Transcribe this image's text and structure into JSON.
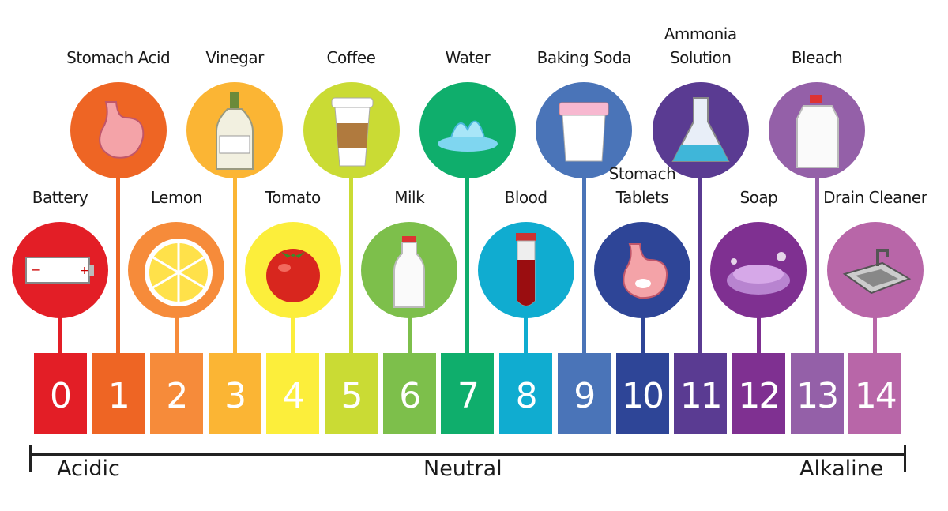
{
  "scale": {
    "levels": [
      {
        "ph": "0",
        "label": [
          "Battery"
        ],
        "color": "#e31e26",
        "icon": "battery-icon"
      },
      {
        "ph": "1",
        "label": [
          "Stomach Acid"
        ],
        "color": "#ee6524",
        "icon": "stomach-icon"
      },
      {
        "ph": "2",
        "label": [
          "Lemon"
        ],
        "color": "#f68b3a",
        "icon": "lemon-icon"
      },
      {
        "ph": "3",
        "label": [
          "Vinegar"
        ],
        "color": "#fbb534",
        "icon": "vinegar-bottle-icon"
      },
      {
        "ph": "4",
        "label": [
          "Tomato"
        ],
        "color": "#fcee3b",
        "icon": "tomato-icon"
      },
      {
        "ph": "5",
        "label": [
          "Coffee"
        ],
        "color": "#cadb34",
        "icon": "coffee-cup-icon"
      },
      {
        "ph": "6",
        "label": [
          "Milk"
        ],
        "color": "#7dbf4b",
        "icon": "milk-bottle-icon"
      },
      {
        "ph": "7",
        "label": [
          "Water"
        ],
        "color": "#0fae6c",
        "icon": "water-splash-icon"
      },
      {
        "ph": "8",
        "label": [
          "Blood"
        ],
        "color": "#10acd0",
        "icon": "blood-tube-icon"
      },
      {
        "ph": "9",
        "label": [
          "Baking Soda"
        ],
        "color": "#4a74b8",
        "icon": "baking-soda-tub-icon"
      },
      {
        "ph": "10",
        "label": [
          "Stomach",
          "Tablets"
        ],
        "color": "#2e4597",
        "icon": "stomach-tablet-icon"
      },
      {
        "ph": "11",
        "label": [
          "Ammonia",
          "Solution"
        ],
        "color": "#5a3b92",
        "icon": "flask-icon"
      },
      {
        "ph": "12",
        "label": [
          "Soap"
        ],
        "color": "#7f3091",
        "icon": "soap-icon"
      },
      {
        "ph": "13",
        "label": [
          "Bleach"
        ],
        "color": "#9460a8",
        "icon": "bleach-jug-icon"
      },
      {
        "ph": "14",
        "label": [
          "Drain Cleaner"
        ],
        "color": "#b866a8",
        "icon": "sink-icon"
      }
    ],
    "axis": {
      "left": "Acidic",
      "center": "Neutral",
      "right": "Alkaline"
    }
  }
}
